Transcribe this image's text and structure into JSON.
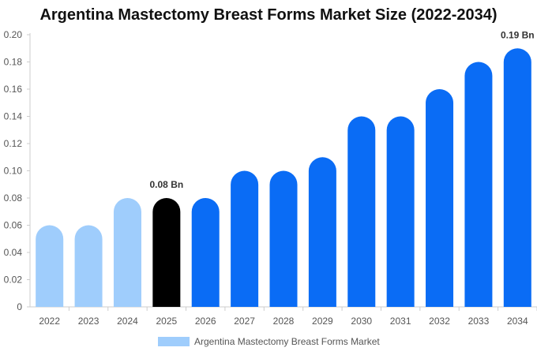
{
  "chart_data": {
    "type": "bar",
    "title": "Argentina Mastectomy Breast Forms Market Size (2022-2034)",
    "categories": [
      "2022",
      "2023",
      "2024",
      "2025",
      "2026",
      "2027",
      "2028",
      "2029",
      "2030",
      "2031",
      "2032",
      "2033",
      "2034"
    ],
    "series": [
      {
        "name": "Argentina Mastectomy Breast Forms Market",
        "values": [
          0.06,
          0.06,
          0.08,
          0.08,
          0.08,
          0.1,
          0.1,
          0.11,
          0.14,
          0.14,
          0.16,
          0.18,
          0.19
        ]
      }
    ],
    "y_ticks": [
      "0",
      "0.02",
      "0.04",
      "0.06",
      "0.08",
      "0.10",
      "0.12",
      "0.14",
      "0.16",
      "0.18",
      "0.20"
    ],
    "ylim": [
      0,
      0.2
    ],
    "xlabel": "",
    "ylabel": "",
    "grid": false,
    "legend_position": "bottom",
    "annotations": [
      {
        "category": "2025",
        "text": "0.08 Bn"
      },
      {
        "category": "2034",
        "text": "0.19 Bn"
      }
    ],
    "colors": {
      "historical": "#9fcdfc",
      "current": "#000000",
      "forecast": "#0a6cf5",
      "legend_swatch": "#9fcdfc",
      "axis": "#cccccc"
    },
    "bar_color_by_category": [
      "historical",
      "historical",
      "historical",
      "current",
      "forecast",
      "forecast",
      "forecast",
      "forecast",
      "forecast",
      "forecast",
      "forecast",
      "forecast",
      "forecast"
    ]
  }
}
